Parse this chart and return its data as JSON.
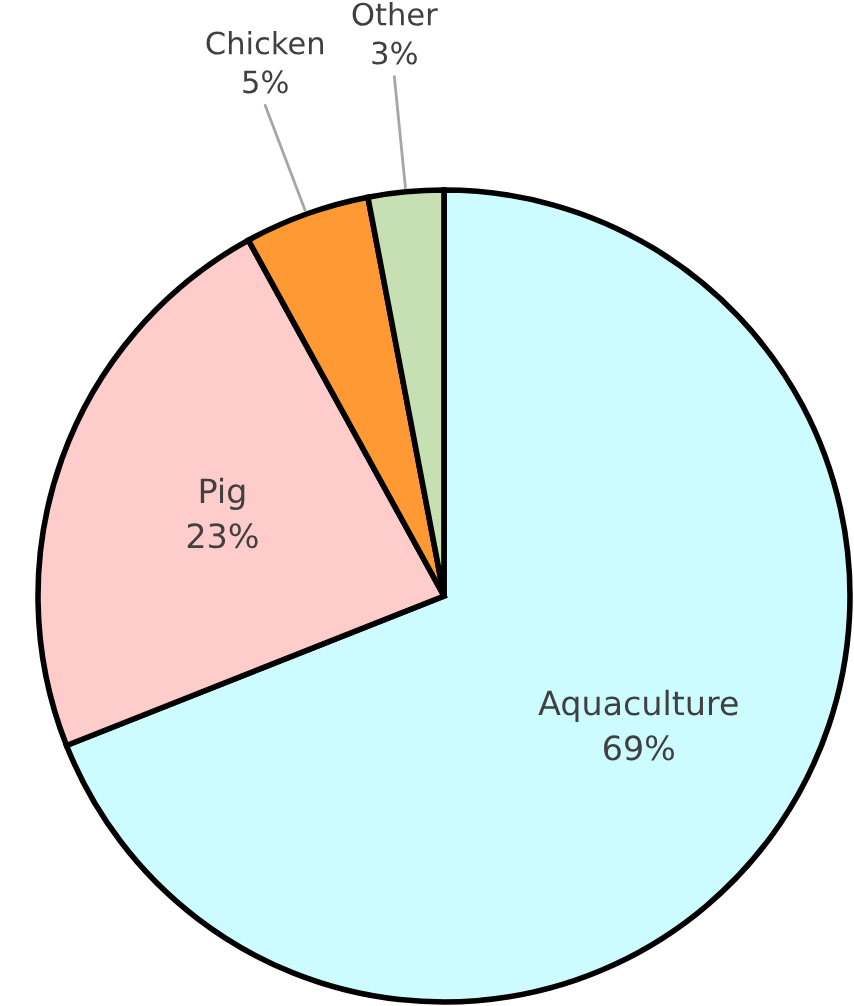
{
  "chart_data": {
    "type": "pie",
    "categories": [
      "Aquaculture",
      "Pig",
      "Chicken",
      "Other"
    ],
    "values": [
      69,
      23,
      5,
      3
    ],
    "colors": [
      "#ccfcff",
      "#ffcccc",
      "#ff9933",
      "#c6e0b4"
    ],
    "value_labels": [
      "69%",
      "23%",
      "5%",
      "3%"
    ]
  }
}
